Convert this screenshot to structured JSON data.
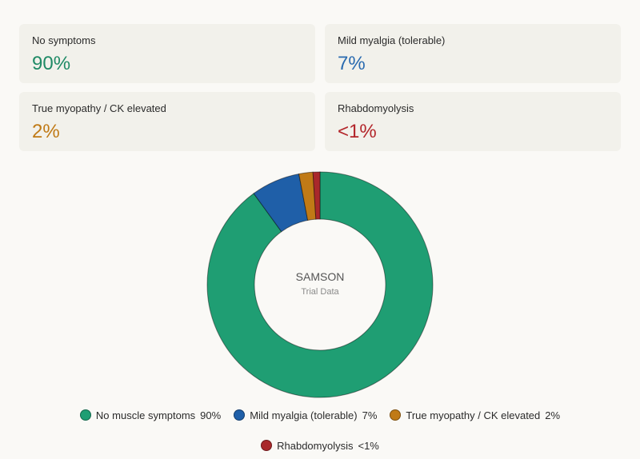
{
  "stats": [
    {
      "label": "No symptoms",
      "value": "90%",
      "color": "#1f8a65"
    },
    {
      "label": "Mild myalgia (tolerable)",
      "value": "7%",
      "color": "#2a6bb0"
    },
    {
      "label": "True myopathy / CK elevated",
      "value": "2%",
      "color": "#c07a16"
    },
    {
      "label": "Rhabdomyolysis",
      "value": "<1%",
      "color": "#b3262b"
    }
  ],
  "chart_data": {
    "type": "pie",
    "categories": [
      "No muscle symptoms",
      "Mild myalgia (tolerable)",
      "True myopathy / CK elevated",
      "Rhabdomyolysis"
    ],
    "values": [
      90,
      7,
      2,
      1
    ],
    "value_labels": [
      "90%",
      "7%",
      "2%",
      "<1%"
    ],
    "colors": [
      "#1f9e73",
      "#1f5fa8",
      "#c07a16",
      "#a9282b"
    ],
    "center_title": "SAMSON",
    "center_subtitle": "Trial Data",
    "legend_position": "bottom"
  }
}
